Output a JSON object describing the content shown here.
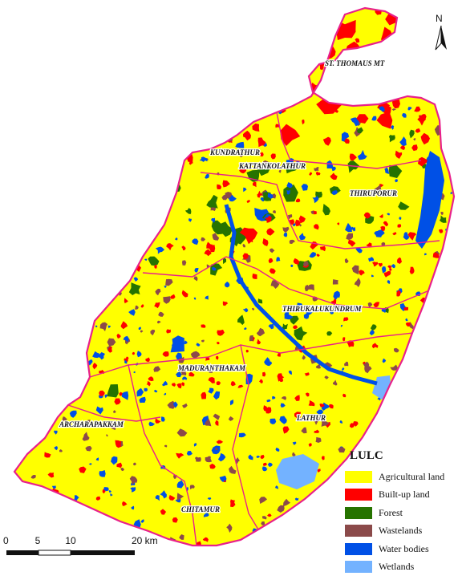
{
  "map": {
    "taluk_labels": [
      "ST. THOMAUS MT",
      "KUNDRATHUR",
      "KATTANKOLATHUR",
      "THIRUPORUR",
      "THIRUKALUKUNDRUM",
      "MADURANTHAKAM",
      "LATHUR",
      "ARCHARAPAKKAM",
      "CHITAMUR"
    ]
  },
  "legend": {
    "title": "LULC",
    "items": [
      {
        "label": "Agricultural land",
        "color": "#ffff00"
      },
      {
        "label": "Built-up land",
        "color": "#ff0000"
      },
      {
        "label": "Forest",
        "color": "#267300"
      },
      {
        "label": "Wastelands",
        "color": "#8b4a4a"
      },
      {
        "label": "Water bodies",
        "color": "#0050e6"
      },
      {
        "label": "Wetlands",
        "color": "#73b2ff"
      }
    ]
  },
  "north_arrow": {
    "letter": "N"
  },
  "scale_bar": {
    "ticks": [
      "0",
      "5",
      "10",
      "20 km"
    ]
  },
  "colors": {
    "boundary": "#e8208c"
  }
}
